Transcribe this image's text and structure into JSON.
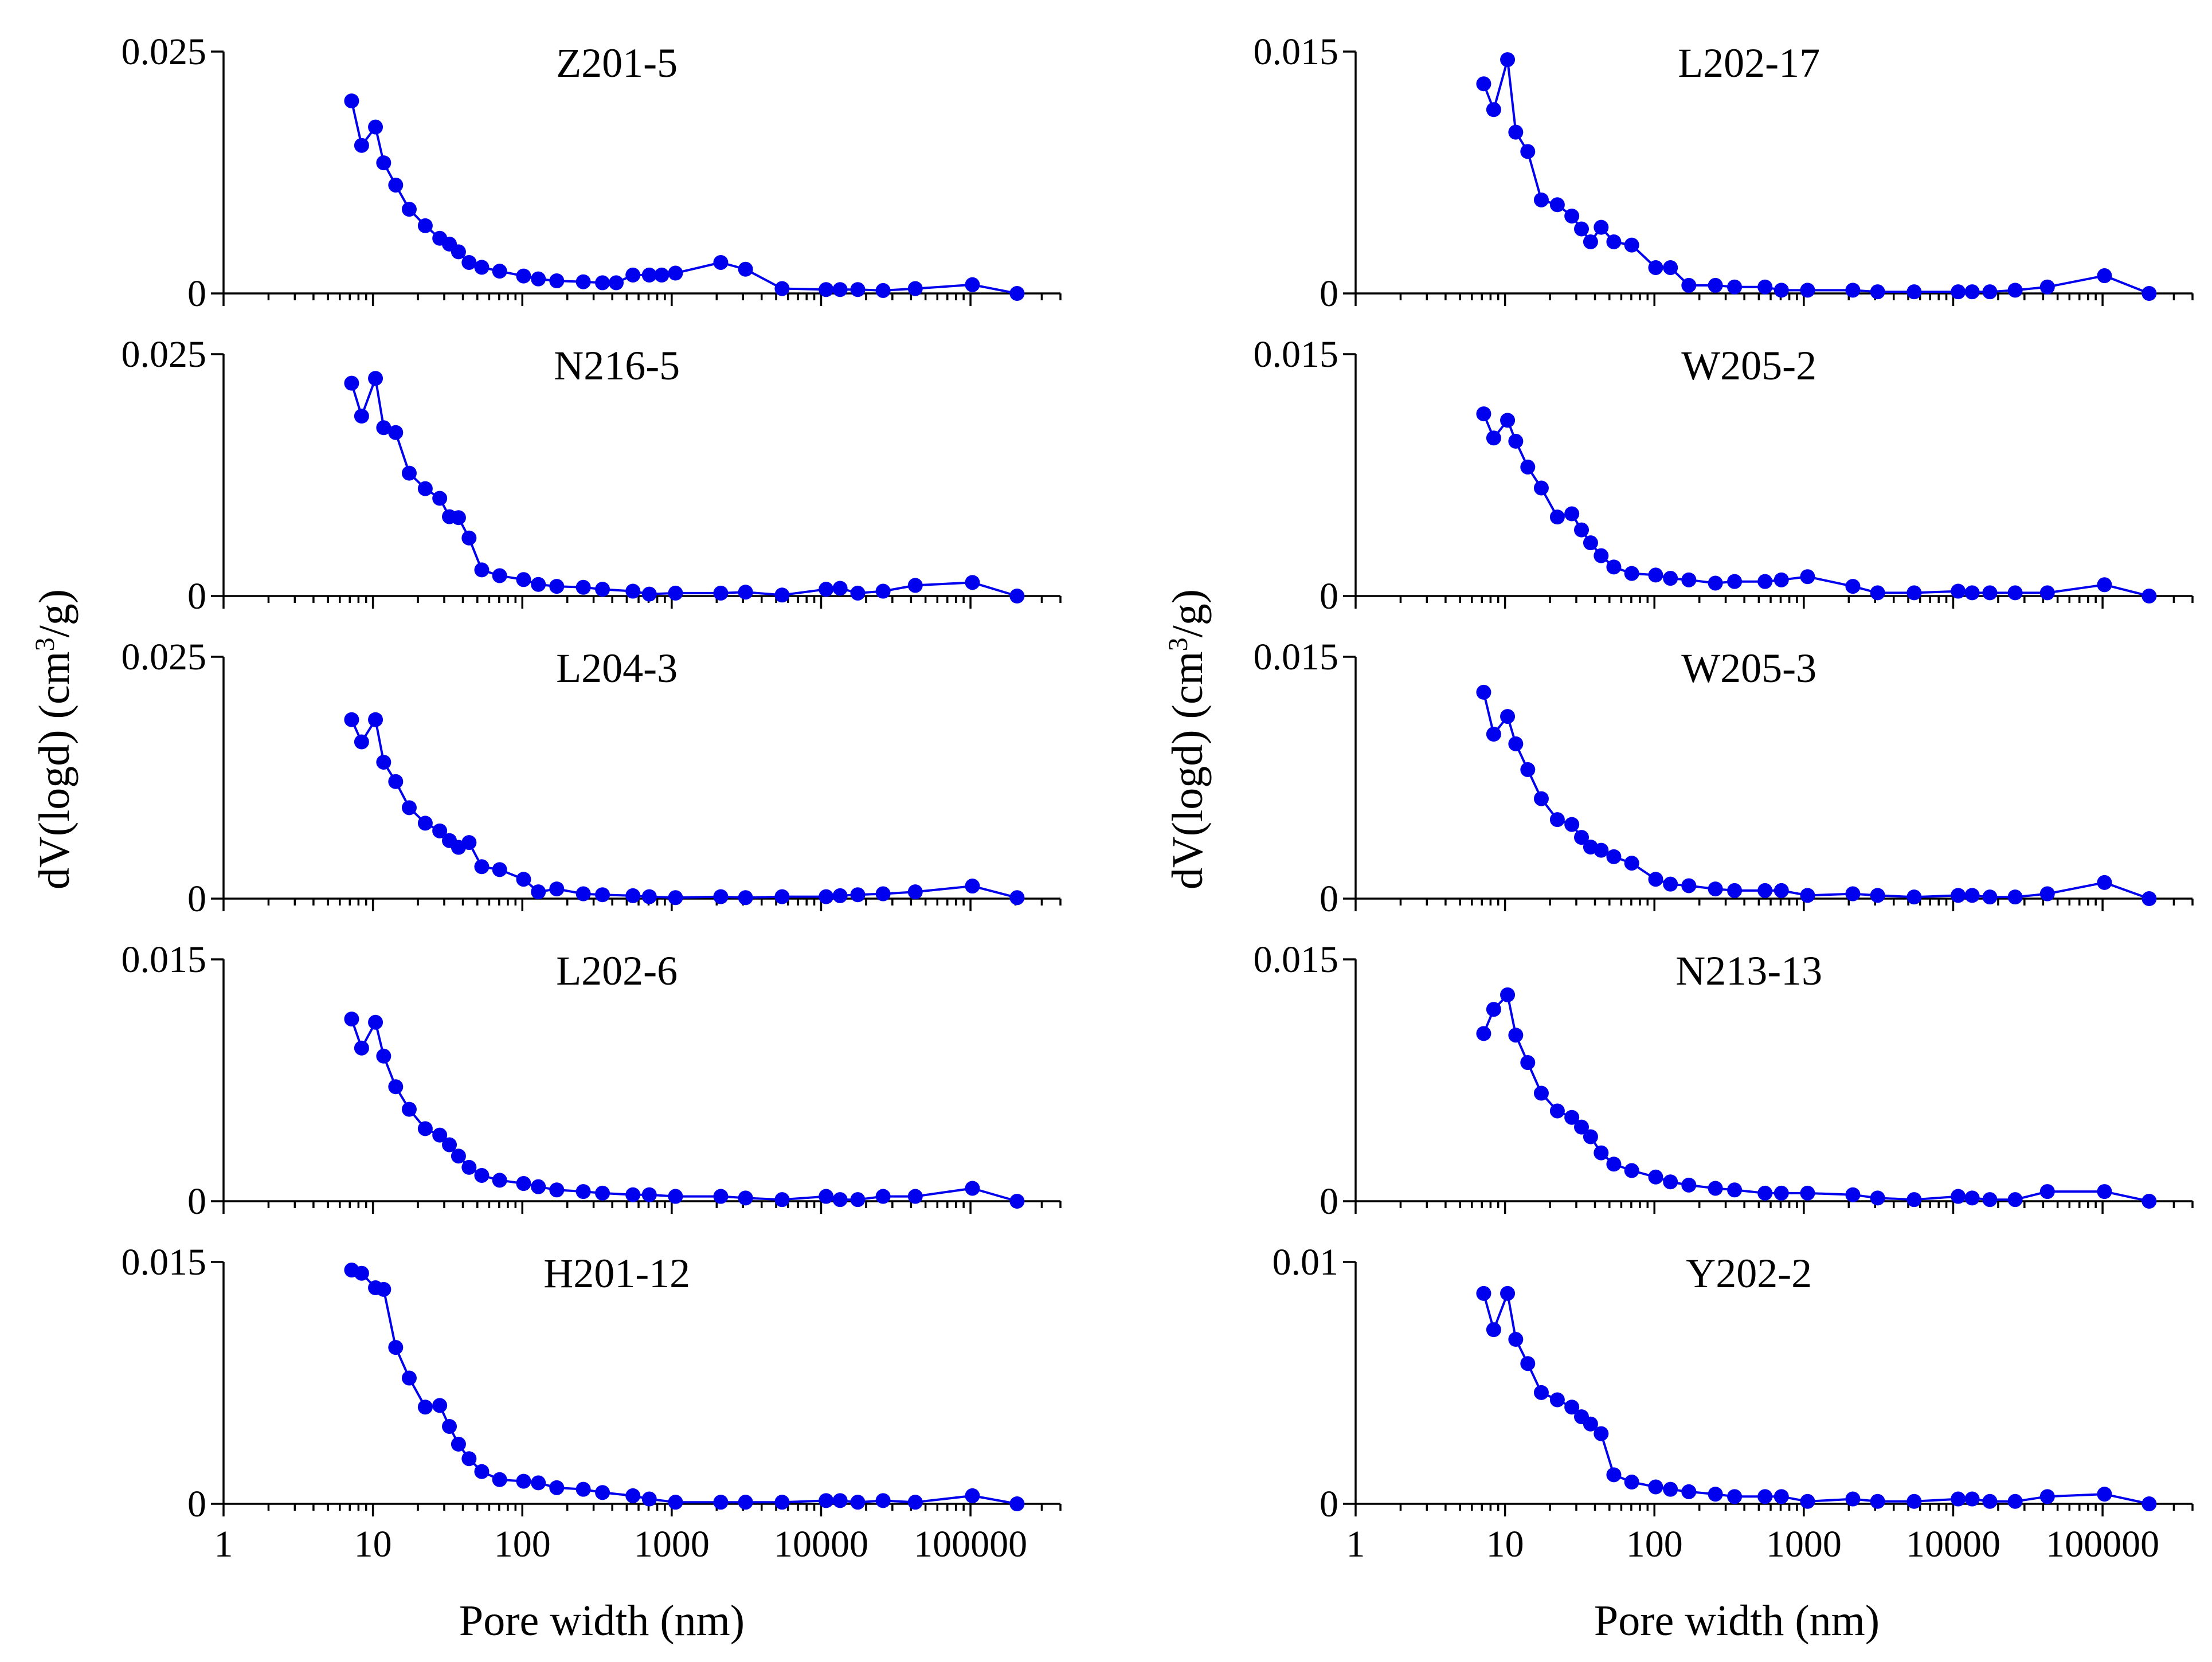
{
  "colors": {
    "series": "#0000ee",
    "axis": "#000000",
    "background": "#ffffff"
  },
  "x_axis_title": "Pore width (nm)",
  "y_axis_title_prefix": "dV(logd) (cm",
  "y_axis_title_sup": "3",
  "y_axis_title_suffix": "/g)",
  "x_tick_labels": [
    "1",
    "10",
    "100",
    "1000",
    "10000",
    "100000"
  ],
  "chart_data": [
    {
      "type": "scatter",
      "title": "Z201-5",
      "column": "left",
      "xlabel": "",
      "ylabel": "dV(logd) (cm3/g)",
      "xscale": "log",
      "xlim": [
        1,
        400000
      ],
      "ylim": [
        0,
        0.025
      ],
      "ytick_labels": [
        "0",
        "0.025"
      ],
      "x": [
        7.2,
        8.4,
        10.4,
        11.8,
        14.2,
        17.5,
        22.4,
        28.0,
        32.5,
        37.4,
        44.0,
        53.5,
        70.5,
        102,
        128,
        170,
        256,
        344,
        425,
        550,
        708,
        857,
        1060,
        2130,
        3120,
        5480,
        10800,
        13400,
        17600,
        26000,
        42700,
        103000,
        205000
      ],
      "y": [
        0.0199,
        0.0153,
        0.0172,
        0.0135,
        0.0112,
        0.0087,
        0.007,
        0.0057,
        0.0051,
        0.0043,
        0.0032,
        0.0027,
        0.0023,
        0.0018,
        0.0015,
        0.0013,
        0.0012,
        0.0011,
        0.0011,
        0.0019,
        0.0019,
        0.0019,
        0.0021,
        0.0032,
        0.0025,
        0.0005,
        0.0004,
        0.0004,
        0.0004,
        0.0003,
        0.0005,
        0.0009,
        0.0
      ]
    },
    {
      "type": "scatter",
      "title": "N216-5",
      "column": "left",
      "xlabel": "",
      "ylabel": "dV(logd) (cm3/g)",
      "xscale": "log",
      "xlim": [
        1,
        400000
      ],
      "ylim": [
        0,
        0.025
      ],
      "ytick_labels": [
        "0",
        "0.025"
      ],
      "x": [
        7.2,
        8.4,
        10.4,
        11.8,
        14.2,
        17.5,
        22.4,
        28.0,
        32.5,
        37.4,
        44.0,
        53.5,
        70.5,
        102,
        128,
        170,
        256,
        344,
        550,
        708,
        1060,
        2130,
        3120,
        5480,
        10800,
        13400,
        17600,
        26000,
        42700,
        103000,
        205000
      ],
      "y": [
        0.022,
        0.0186,
        0.0225,
        0.0174,
        0.0169,
        0.0127,
        0.0111,
        0.0101,
        0.0082,
        0.0081,
        0.006,
        0.0027,
        0.0021,
        0.0017,
        0.0012,
        0.001,
        0.0009,
        0.0007,
        0.0005,
        0.0002,
        0.0003,
        0.0003,
        0.0004,
        0.0001,
        0.0007,
        0.0008,
        0.0003,
        0.0005,
        0.0011,
        0.0014,
        0.0
      ]
    },
    {
      "type": "scatter",
      "title": "L204-3",
      "column": "left",
      "xlabel": "",
      "ylabel": "dV(logd) (cm3/g)",
      "xscale": "log",
      "xlim": [
        1,
        400000
      ],
      "ylim": [
        0,
        0.025
      ],
      "ytick_labels": [
        "0",
        "0.025"
      ],
      "x": [
        7.2,
        8.4,
        10.4,
        11.8,
        14.2,
        17.5,
        22.4,
        28.0,
        32.5,
        37.4,
        44.0,
        53.5,
        70.5,
        102,
        128,
        170,
        256,
        344,
        550,
        708,
        1060,
        2130,
        3120,
        5480,
        10800,
        13400,
        17600,
        26000,
        42700,
        103000,
        205000
      ],
      "y": [
        0.0185,
        0.0162,
        0.0185,
        0.0141,
        0.0121,
        0.0094,
        0.0078,
        0.007,
        0.006,
        0.0053,
        0.0058,
        0.0033,
        0.003,
        0.002,
        0.0007,
        0.001,
        0.0005,
        0.0004,
        0.0003,
        0.0002,
        0.0001,
        0.0002,
        0.0001,
        0.0002,
        0.0002,
        0.0003,
        0.0004,
        0.0005,
        0.0007,
        0.0013,
        0.0001
      ]
    },
    {
      "type": "scatter",
      "title": "L202-6",
      "column": "left",
      "xlabel": "",
      "ylabel": "dV(logd) (cm3/g)",
      "xscale": "log",
      "xlim": [
        1,
        400000
      ],
      "ylim": [
        0,
        0.015
      ],
      "ytick_labels": [
        "0",
        "0.015"
      ],
      "x": [
        7.2,
        8.4,
        10.4,
        11.8,
        14.2,
        17.5,
        22.4,
        28.0,
        32.5,
        37.4,
        44.0,
        53.5,
        70.5,
        102,
        128,
        170,
        256,
        344,
        550,
        708,
        1060,
        2130,
        3120,
        5480,
        10800,
        13400,
        17600,
        26000,
        42700,
        103000,
        205000
      ],
      "y": [
        0.0113,
        0.0095,
        0.0111,
        0.009,
        0.0071,
        0.0057,
        0.0045,
        0.0041,
        0.0035,
        0.0028,
        0.0021,
        0.0016,
        0.0013,
        0.0011,
        0.0009,
        0.0007,
        0.0006,
        0.0005,
        0.0004,
        0.0004,
        0.0003,
        0.0003,
        0.0002,
        0.0001,
        0.0003,
        0.0001,
        0.0001,
        0.0003,
        0.0003,
        0.0008,
        0.0
      ]
    },
    {
      "type": "scatter",
      "title": "H201-12",
      "column": "left",
      "xlabel": "Pore width (nm)",
      "ylabel": "dV(logd) (cm3/g)",
      "xscale": "log",
      "xlim": [
        1,
        400000
      ],
      "ylim": [
        0,
        0.015
      ],
      "ytick_labels": [
        "0",
        "0.015"
      ],
      "x": [
        7.2,
        8.4,
        10.4,
        11.8,
        14.2,
        17.5,
        22.4,
        28.0,
        32.5,
        37.4,
        44.0,
        53.5,
        70.5,
        102,
        128,
        170,
        256,
        344,
        550,
        708,
        1060,
        2130,
        3120,
        5480,
        10800,
        13400,
        17600,
        26000,
        42700,
        103000,
        205000
      ],
      "y": [
        0.0145,
        0.0143,
        0.0134,
        0.0133,
        0.0097,
        0.0078,
        0.006,
        0.0061,
        0.0048,
        0.0037,
        0.0028,
        0.002,
        0.0015,
        0.0014,
        0.0013,
        0.001,
        0.0009,
        0.0007,
        0.0005,
        0.0003,
        0.0001,
        0.0001,
        0.0001,
        0.0001,
        0.0002,
        0.0002,
        0.0001,
        0.0002,
        0.0001,
        0.0005,
        0.0
      ]
    },
    {
      "type": "scatter",
      "title": "L202-17",
      "column": "right",
      "xlabel": "",
      "ylabel": "dV(logd) (cm3/g)",
      "xscale": "log",
      "xlim": [
        1,
        400000
      ],
      "ylim": [
        0,
        0.015
      ],
      "ytick_labels": [
        "0",
        "0.015"
      ],
      "x": [
        7.2,
        8.4,
        10.4,
        11.8,
        14.2,
        17.5,
        22.4,
        28.0,
        32.5,
        37.4,
        44.0,
        53.5,
        70.5,
        102,
        128,
        170,
        256,
        344,
        550,
        708,
        1060,
        2130,
        3120,
        5480,
        10800,
        13400,
        17600,
        26000,
        42700,
        103000,
        205000
      ],
      "y": [
        0.013,
        0.0114,
        0.0145,
        0.01,
        0.0088,
        0.0058,
        0.0055,
        0.0048,
        0.004,
        0.0032,
        0.0041,
        0.0032,
        0.003,
        0.0016,
        0.0016,
        0.0005,
        0.0005,
        0.0004,
        0.0004,
        0.0002,
        0.0002,
        0.0002,
        0.0001,
        0.0001,
        0.0001,
        0.0001,
        0.0001,
        0.0002,
        0.0004,
        0.0011,
        0.0
      ]
    },
    {
      "type": "scatter",
      "title": "W205-2",
      "column": "right",
      "xlabel": "",
      "ylabel": "dV(logd) (cm3/g)",
      "xscale": "log",
      "xlim": [
        1,
        400000
      ],
      "ylim": [
        0,
        0.015
      ],
      "ytick_labels": [
        "0",
        "0.015"
      ],
      "x": [
        7.2,
        8.4,
        10.4,
        11.8,
        14.2,
        17.5,
        22.4,
        28.0,
        32.5,
        37.4,
        44.0,
        53.5,
        70.5,
        102,
        128,
        170,
        256,
        344,
        550,
        708,
        1060,
        2130,
        3120,
        5480,
        10800,
        13400,
        17600,
        26000,
        42700,
        103000,
        205000
      ],
      "y": [
        0.0113,
        0.0098,
        0.0109,
        0.0096,
        0.008,
        0.0067,
        0.0049,
        0.0051,
        0.0041,
        0.0033,
        0.0025,
        0.0018,
        0.0014,
        0.0013,
        0.0011,
        0.001,
        0.0008,
        0.0009,
        0.0009,
        0.001,
        0.0012,
        0.0006,
        0.0002,
        0.0002,
        0.0003,
        0.0002,
        0.0002,
        0.0002,
        0.0002,
        0.0007,
        0.0
      ]
    },
    {
      "type": "scatter",
      "title": "W205-3",
      "column": "right",
      "xlabel": "",
      "ylabel": "dV(logd) (cm3/g)",
      "xscale": "log",
      "xlim": [
        1,
        400000
      ],
      "ylim": [
        0,
        0.015
      ],
      "ytick_labels": [
        "0",
        "0.015"
      ],
      "x": [
        7.2,
        8.4,
        10.4,
        11.8,
        14.2,
        17.5,
        22.4,
        28.0,
        32.5,
        37.4,
        44.0,
        53.5,
        70.5,
        102,
        128,
        170,
        256,
        344,
        550,
        708,
        1060,
        2130,
        3120,
        5480,
        10800,
        13400,
        17600,
        26000,
        42700,
        103000,
        205000
      ],
      "y": [
        0.0128,
        0.0102,
        0.0113,
        0.0096,
        0.008,
        0.0062,
        0.0049,
        0.0046,
        0.0038,
        0.0032,
        0.003,
        0.0026,
        0.0022,
        0.0012,
        0.0009,
        0.0008,
        0.0006,
        0.0005,
        0.0005,
        0.0005,
        0.0002,
        0.0003,
        0.0002,
        0.0001,
        0.0002,
        0.0002,
        0.0001,
        0.0001,
        0.0003,
        0.001,
        0.0
      ]
    },
    {
      "type": "scatter",
      "title": "N213-13",
      "column": "right",
      "xlabel": "",
      "ylabel": "dV(logd) (cm3/g)",
      "xscale": "log",
      "xlim": [
        1,
        400000
      ],
      "ylim": [
        0,
        0.015
      ],
      "ytick_labels": [
        "0",
        "0.015"
      ],
      "x": [
        7.2,
        8.4,
        10.4,
        11.8,
        14.2,
        17.5,
        22.4,
        28.0,
        32.5,
        37.4,
        44.0,
        53.5,
        70.5,
        102,
        128,
        170,
        256,
        344,
        550,
        708,
        1060,
        2130,
        3120,
        5480,
        10800,
        13400,
        17600,
        26000,
        42700,
        103000,
        205000
      ],
      "y": [
        0.0104,
        0.0119,
        0.0128,
        0.0103,
        0.0086,
        0.0067,
        0.0056,
        0.0052,
        0.0046,
        0.004,
        0.003,
        0.0023,
        0.0019,
        0.0015,
        0.0012,
        0.001,
        0.0008,
        0.0007,
        0.0005,
        0.0005,
        0.0005,
        0.0004,
        0.0002,
        0.0001,
        0.0003,
        0.0002,
        0.0001,
        0.0001,
        0.0006,
        0.0006,
        0.0
      ]
    },
    {
      "type": "scatter",
      "title": "Y202-2",
      "column": "right",
      "xlabel": "Pore width (nm)",
      "ylabel": "dV(logd) (cm3/g)",
      "xscale": "log",
      "xlim": [
        1,
        400000
      ],
      "ylim": [
        0,
        0.01
      ],
      "ytick_labels": [
        "0",
        "0.01"
      ],
      "x": [
        7.2,
        8.4,
        10.4,
        11.8,
        14.2,
        17.5,
        22.4,
        28.0,
        32.5,
        37.4,
        44.0,
        53.5,
        70.5,
        102,
        128,
        170,
        256,
        344,
        550,
        708,
        1060,
        2130,
        3120,
        5480,
        10800,
        13400,
        17600,
        26000,
        42700,
        103000,
        205000
      ],
      "y": [
        0.0087,
        0.0072,
        0.0087,
        0.0068,
        0.0058,
        0.0046,
        0.0043,
        0.004,
        0.0036,
        0.0033,
        0.0029,
        0.0012,
        0.0009,
        0.0007,
        0.0006,
        0.0005,
        0.0004,
        0.0003,
        0.0003,
        0.0003,
        0.0001,
        0.0002,
        0.0001,
        0.0001,
        0.0002,
        0.0002,
        0.0001,
        0.0001,
        0.0003,
        0.0004,
        0.0
      ]
    }
  ]
}
